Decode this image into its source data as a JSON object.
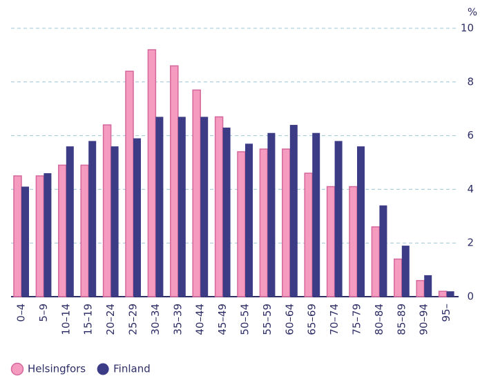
{
  "chart_data": {
    "type": "bar",
    "ylabel": "%",
    "categories": [
      "0–4",
      "5–9",
      "10–14",
      "15–19",
      "20–24",
      "25–29",
      "30–34",
      "35–39",
      "40–44",
      "45–49",
      "50–54",
      "55–59",
      "60–64",
      "65–69",
      "70–74",
      "75–79",
      "80–84",
      "85–89",
      "90–94",
      "95–"
    ],
    "series": [
      {
        "name": "Helsingfors",
        "color": "#f59bbf",
        "values": [
          4.5,
          4.5,
          4.9,
          4.9,
          6.4,
          8.4,
          9.2,
          8.6,
          7.7,
          6.7,
          5.4,
          5.5,
          5.5,
          4.6,
          4.1,
          4.1,
          2.6,
          1.4,
          0.6,
          0.2
        ]
      },
      {
        "name": "Finland",
        "color": "#3b3b86",
        "values": [
          4.1,
          4.6,
          5.6,
          5.8,
          5.6,
          5.9,
          6.7,
          6.7,
          6.7,
          6.3,
          5.7,
          6.1,
          6.4,
          6.1,
          5.8,
          5.6,
          3.4,
          1.9,
          0.8,
          0.2
        ]
      }
    ],
    "ylim": [
      0,
      10
    ],
    "yticks": [
      0,
      2,
      4,
      6,
      8,
      10
    ],
    "grid": true,
    "legend": "bottom-left"
  }
}
